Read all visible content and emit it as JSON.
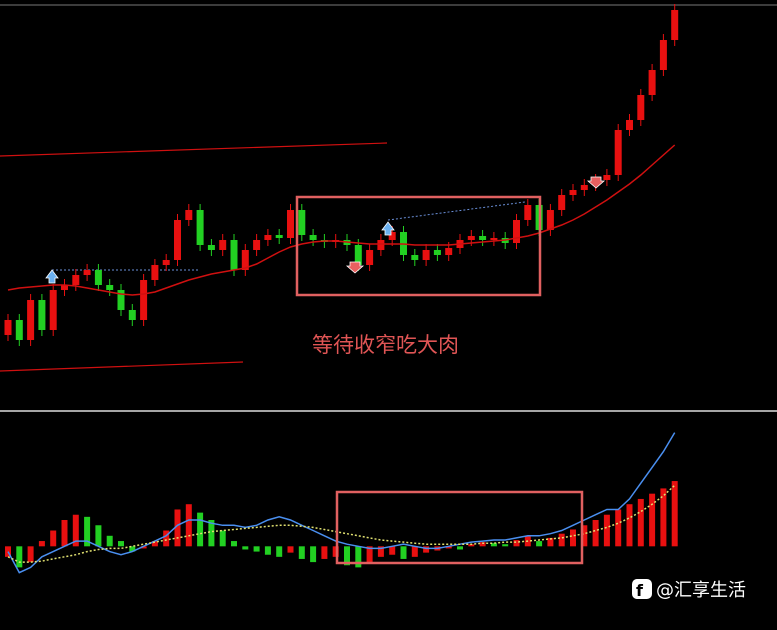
{
  "chart_data": [
    {
      "type": "candlestick",
      "open": [
        75,
        90,
        70,
        110,
        80,
        120,
        125,
        135,
        140,
        125,
        120,
        100,
        90,
        130,
        145,
        150,
        190,
        200,
        165,
        160,
        170,
        140,
        160,
        170,
        175,
        172,
        200,
        175,
        170,
        168,
        170,
        165,
        145,
        160,
        170,
        178,
        155,
        150,
        160,
        155,
        162,
        170,
        174,
        170,
        172,
        167,
        190,
        205,
        180,
        200,
        215,
        220,
        225,
        230,
        235,
        280,
        290,
        315,
        340,
        370
      ],
      "high": [
        96,
        96,
        116,
        116,
        126,
        131,
        141,
        146,
        146,
        131,
        126,
        106,
        136,
        151,
        156,
        196,
        206,
        206,
        171,
        176,
        176,
        166,
        176,
        181,
        181,
        206,
        206,
        181,
        176,
        176,
        176,
        171,
        166,
        176,
        184,
        184,
        161,
        166,
        166,
        168,
        176,
        180,
        180,
        178,
        178,
        196,
        211,
        211,
        206,
        221,
        226,
        231,
        236,
        241,
        286,
        296,
        321,
        346,
        376,
        406
      ],
      "low": [
        69,
        64,
        64,
        74,
        74,
        114,
        119,
        129,
        119,
        114,
        94,
        84,
        84,
        124,
        139,
        144,
        184,
        159,
        154,
        154,
        134,
        134,
        154,
        164,
        166,
        166,
        169,
        164,
        162,
        162,
        159,
        139,
        139,
        154,
        164,
        149,
        144,
        144,
        149,
        149,
        156,
        164,
        164,
        164,
        161,
        161,
        184,
        174,
        174,
        194,
        209,
        214,
        219,
        224,
        229,
        274,
        284,
        309,
        334,
        364
      ],
      "close": [
        90,
        70,
        110,
        80,
        120,
        125,
        135,
        140,
        125,
        120,
        100,
        90,
        130,
        145,
        150,
        190,
        200,
        165,
        160,
        170,
        140,
        160,
        170,
        175,
        172,
        200,
        175,
        170,
        168,
        170,
        165,
        145,
        160,
        170,
        178,
        155,
        150,
        160,
        155,
        162,
        170,
        174,
        170,
        172,
        167,
        190,
        205,
        180,
        200,
        215,
        220,
        225,
        230,
        235,
        280,
        290,
        315,
        340,
        370,
        400
      ],
      "up_color": "#e81010",
      "down_color": "#22d022",
      "series": [
        {
          "color": "#d01010",
          "values": [
            120,
            122,
            123,
            124,
            125,
            125,
            124,
            122,
            120,
            118,
            116,
            115,
            116,
            118,
            122,
            126,
            130,
            133,
            136,
            138,
            140,
            142,
            146,
            152,
            158,
            163,
            166,
            168,
            169,
            169,
            168,
            167,
            166,
            166,
            166,
            166,
            165,
            165,
            165,
            165,
            166,
            167,
            168,
            169,
            170,
            172,
            174,
            177,
            181,
            185,
            190,
            196,
            203,
            210,
            218,
            226,
            235,
            245,
            255,
            265
          ]
        }
      ],
      "ylim": [
        0,
        410
      ],
      "annotation": "等待收窄吃大肉"
    },
    {
      "type": "bar",
      "values": [
        -10,
        -20,
        -15,
        5,
        15,
        25,
        30,
        28,
        20,
        10,
        5,
        -5,
        -2,
        5,
        15,
        35,
        40,
        32,
        25,
        15,
        5,
        -3,
        -5,
        -8,
        -10,
        -6,
        -12,
        -15,
        -12,
        -10,
        -18,
        -20,
        -15,
        -10,
        -8,
        -12,
        -10,
        -6,
        -4,
        -2,
        -3,
        2,
        4,
        3,
        2,
        6,
        10,
        5,
        8,
        12,
        16,
        20,
        25,
        30,
        35,
        40,
        45,
        50,
        55,
        62
      ],
      "up_color": "#e81010",
      "down_color": "#22d022",
      "series": [
        {
          "color": "#4a8ff0",
          "values": [
            -5,
            -25,
            -20,
            -10,
            -5,
            0,
            5,
            5,
            0,
            -5,
            -8,
            -5,
            0,
            5,
            10,
            20,
            25,
            25,
            22,
            20,
            20,
            18,
            20,
            25,
            28,
            25,
            20,
            15,
            10,
            5,
            2,
            0,
            -2,
            -2,
            0,
            2,
            0,
            -2,
            -2,
            0,
            2,
            4,
            5,
            6,
            6,
            8,
            10,
            10,
            12,
            15,
            20,
            25,
            30,
            35,
            35,
            45,
            60,
            75,
            90,
            108
          ]
        },
        {
          "color": "#e0e070",
          "dash": true,
          "values": [
            -10,
            -15,
            -15,
            -14,
            -12,
            -10,
            -8,
            -5,
            -3,
            -2,
            -2,
            0,
            2,
            4,
            6,
            8,
            10,
            12,
            14,
            15,
            16,
            17,
            18,
            19,
            20,
            20,
            19,
            18,
            16,
            14,
            12,
            10,
            8,
            6,
            5,
            4,
            3,
            2,
            2,
            2,
            2,
            2,
            3,
            3,
            4,
            4,
            5,
            6,
            7,
            8,
            10,
            12,
            15,
            18,
            22,
            27,
            33,
            40,
            48,
            58
          ]
        }
      ],
      "ylim": [
        -70,
        120
      ]
    }
  ],
  "watermark": "@汇享生活"
}
